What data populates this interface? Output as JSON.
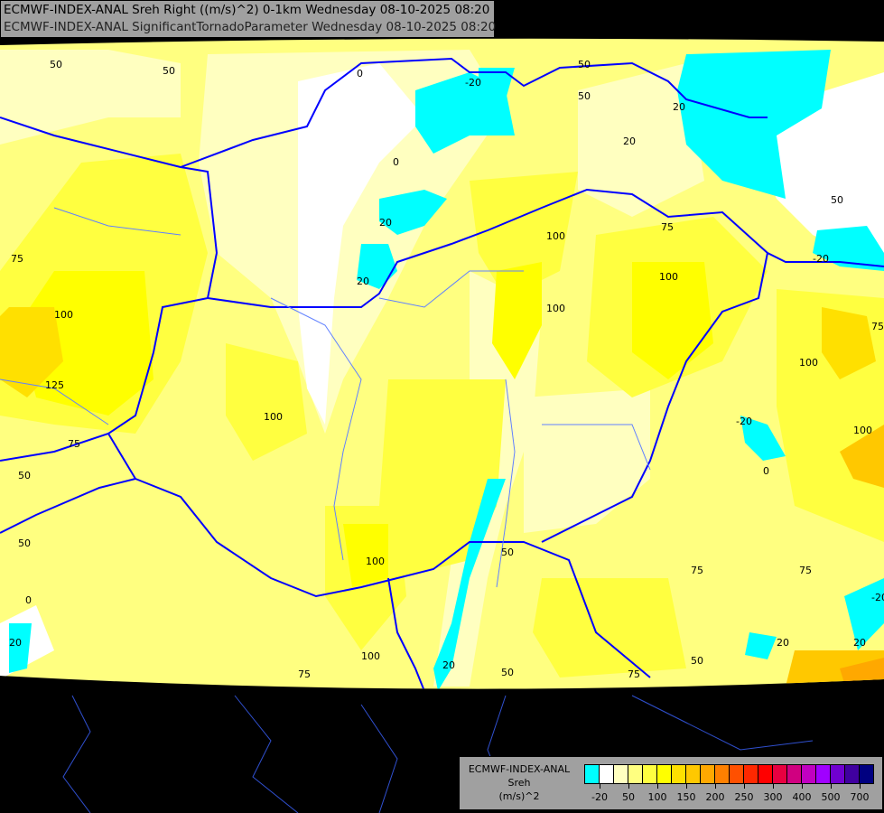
{
  "title": {
    "line1": "ECMWF-INDEX-ANAL Sreh Right ((m/s)^2) 0-1km Wednesday 08-10-2025 08:20",
    "line2": "ECMWF-INDEX-ANAL SignificantTornadoParameter Wednesday 08-10-2025 08:20"
  },
  "legend": {
    "model": "ECMWF-INDEX-ANAL",
    "variable": "Sreh",
    "unit": "(m/s)^2",
    "colors": [
      "#00ffff",
      "#ffffff",
      "#ffffc0",
      "#ffff80",
      "#ffff40",
      "#ffff00",
      "#ffe000",
      "#ffc800",
      "#ffa800",
      "#ff8000",
      "#ff5000",
      "#ff2800",
      "#ff0000",
      "#e80040",
      "#d00080",
      "#c000c0",
      "#a000ff",
      "#7000d0",
      "#4000a0",
      "#000080"
    ],
    "ticks": [
      "-20",
      "50",
      "100",
      "150",
      "200",
      "250",
      "300",
      "400",
      "500",
      "700"
    ]
  },
  "contour_labels": [
    "50",
    "50",
    "0",
    "-20",
    "50",
    "20",
    "20",
    "0",
    "20",
    "-20",
    "75",
    "100",
    "100",
    "125",
    "75",
    "50",
    "100",
    "100",
    "75",
    "100",
    "50",
    "75",
    "100",
    "20",
    "50",
    "100",
    "-20",
    "0",
    "50",
    "75",
    "100",
    "20",
    "-20",
    "50",
    "100",
    "75",
    "20",
    "20",
    "75",
    "50",
    "75",
    "50",
    "0",
    "20"
  ],
  "colors": {
    "border": "#0000ff",
    "river": "#5080ff",
    "outside": "#000000"
  }
}
